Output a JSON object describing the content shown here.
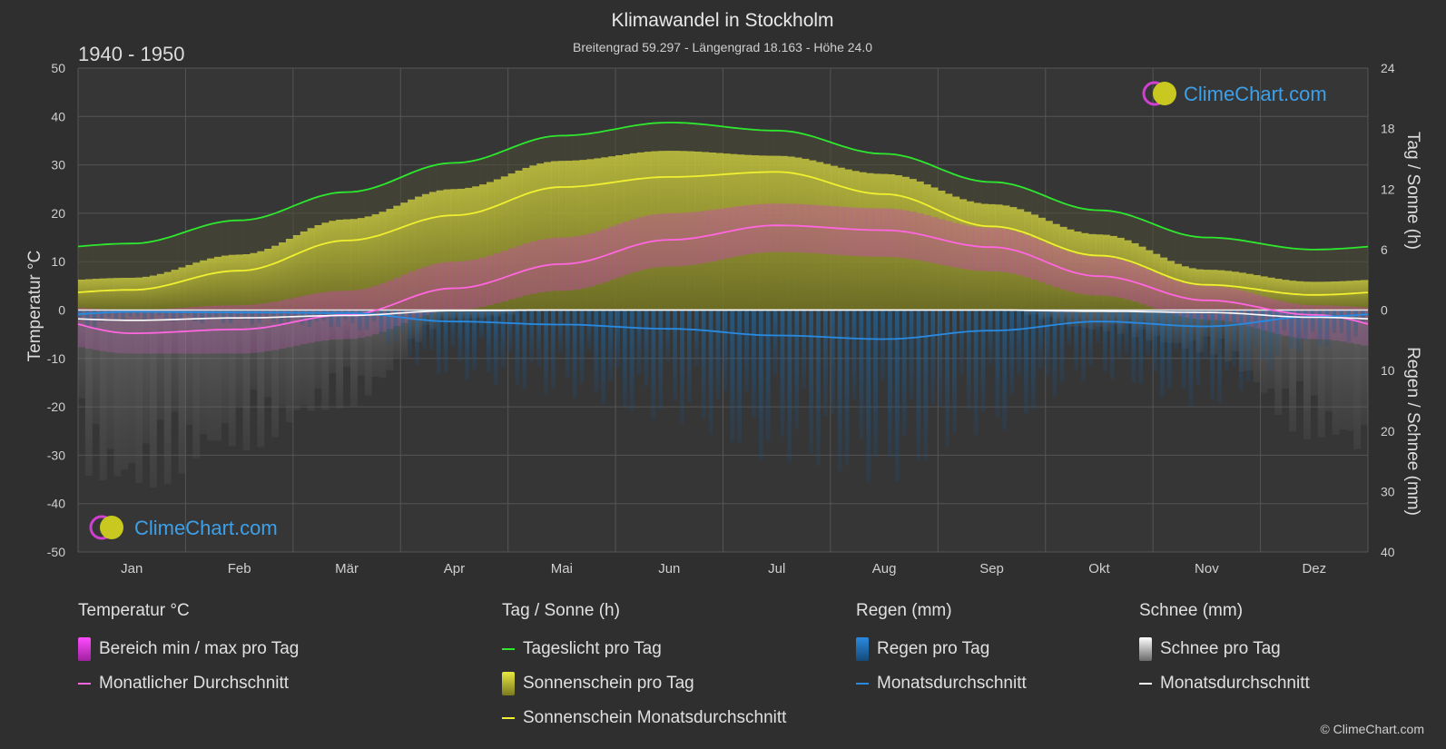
{
  "header": {
    "title": "Klimawandel in Stockholm",
    "subtitle": "Breitengrad 59.297 - Längengrad 18.163 - Höhe 24.0",
    "period": "1940 - 1950"
  },
  "brand": {
    "logo_text": "ClimeChart.com",
    "copyright": "© ClimeChart.com"
  },
  "colors": {
    "background": "#2f2f2f",
    "temp_range": "#e040e0",
    "temp_avg": "#ff66e0",
    "daylight": "#2ee82e",
    "sunshine_bar": "#b8b830",
    "sunshine_avg": "#f0f030",
    "rain_bar": "#1c6fb0",
    "rain_avg": "#2a8ae0",
    "snow_bar": "#9a9a9a",
    "snow_avg": "#ffffff",
    "logo_blue": "#3da0e8"
  },
  "chart_data": {
    "type": "line",
    "title": "Klimawandel in Stockholm",
    "categories": [
      "Jan",
      "Feb",
      "Mär",
      "Apr",
      "Mai",
      "Jun",
      "Jul",
      "Aug",
      "Sep",
      "Okt",
      "Nov",
      "Dez"
    ],
    "y_left": {
      "label": "Temperatur °C",
      "range": [
        -50,
        50
      ],
      "ticks": [
        50,
        40,
        30,
        20,
        10,
        0,
        -10,
        -20,
        -30,
        -40,
        -50
      ]
    },
    "y_right_top": {
      "label": "Tag / Sonne (h)",
      "range": [
        0,
        24
      ],
      "ticks": [
        24,
        18,
        12,
        6,
        0
      ]
    },
    "y_right_bottom": {
      "label": "Regen / Schnee (mm)",
      "range": [
        0,
        40
      ],
      "ticks": [
        0,
        10,
        20,
        30,
        40
      ]
    },
    "grid": true,
    "series": [
      {
        "name": "Tageslicht pro Tag",
        "axis": "hours",
        "values": [
          6.6,
          8.9,
          11.7,
          14.6,
          17.3,
          18.6,
          17.8,
          15.5,
          12.7,
          9.9,
          7.2,
          6.0
        ]
      },
      {
        "name": "Sonnenschein Monatsdurchschnitt",
        "axis": "hours",
        "values": [
          2.0,
          3.9,
          6.9,
          9.4,
          12.2,
          13.2,
          13.7,
          11.5,
          8.3,
          5.4,
          2.5,
          1.5
        ]
      },
      {
        "name": "Monatlicher Durchschnitt",
        "axis": "temp",
        "values": [
          -4.8,
          -4.0,
          -1.0,
          4.5,
          9.5,
          14.5,
          17.5,
          16.5,
          13.0,
          7.0,
          2.0,
          -1.0
        ]
      },
      {
        "name": "Regen Monatsdurchschnitt",
        "axis": "precip",
        "values": [
          0.3,
          0.4,
          0.5,
          1.9,
          2.4,
          3.1,
          4.2,
          4.8,
          3.4,
          1.9,
          2.7,
          1.1
        ]
      },
      {
        "name": "Schnee Monatsdurchschnitt",
        "axis": "precip",
        "values": [
          1.7,
          1.3,
          0.9,
          0.1,
          0.0,
          0.0,
          0.0,
          0.0,
          0.0,
          0.2,
          0.4,
          1.2
        ]
      }
    ],
    "temp_range": {
      "name": "Bereich min / max pro Tag",
      "min": [
        -9,
        -9,
        -6,
        0,
        4,
        9,
        12,
        11,
        8,
        3,
        -2,
        -6
      ],
      "max": [
        0,
        1,
        4,
        10,
        15,
        20,
        22,
        21,
        17,
        11,
        5,
        1
      ]
    },
    "sunshine_daily": {
      "name": "Sonnenschein pro Tag",
      "values": [
        3.2,
        5.5,
        9.0,
        12.0,
        14.8,
        15.8,
        15.3,
        13.5,
        10.5,
        7.5,
        4.0,
        2.8
      ]
    }
  },
  "legend": {
    "temp": {
      "heading": "Temperatur °C",
      "items": [
        "Bereich min / max pro Tag",
        "Monatlicher Durchschnitt"
      ]
    },
    "sun": {
      "heading": "Tag / Sonne (h)",
      "items": [
        "Tageslicht pro Tag",
        "Sonnenschein pro Tag",
        "Sonnenschein Monatsdurchschnitt"
      ]
    },
    "rain": {
      "heading": "Regen (mm)",
      "items": [
        "Regen pro Tag",
        "Monatsdurchschnitt"
      ]
    },
    "snow": {
      "heading": "Schnee (mm)",
      "items": [
        "Schnee pro Tag",
        "Monatsdurchschnitt"
      ]
    }
  }
}
